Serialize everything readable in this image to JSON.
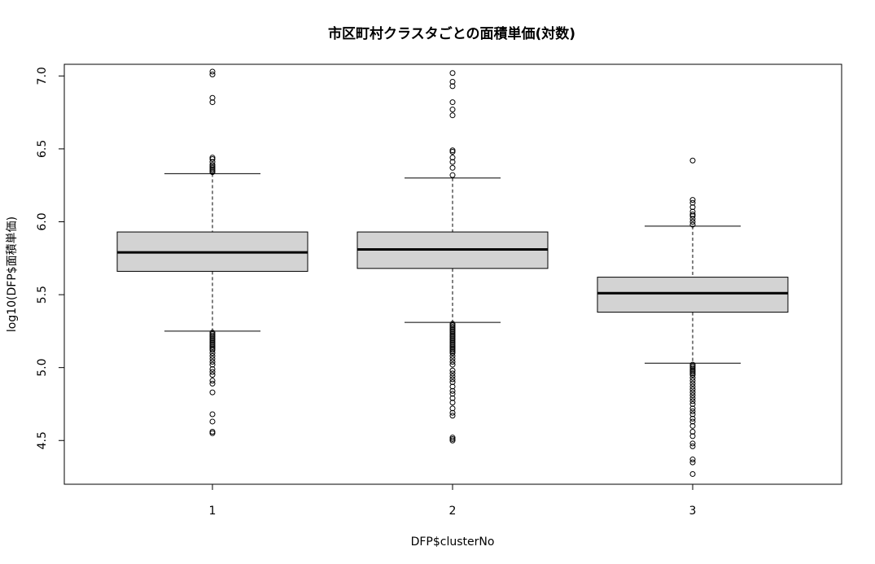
{
  "chart_data": {
    "type": "boxplot",
    "title": "市区町村クラスタごとの面積単価(対数)",
    "xlabel": "DFP$clusterNo",
    "ylabel": "log10(DFP$面積単価)",
    "categories": [
      "1",
      "2",
      "3"
    ],
    "y_ticks": [
      "4.5",
      "5.0",
      "5.5",
      "6.0",
      "6.5",
      "7.0"
    ],
    "ylim": [
      4.2,
      7.08
    ],
    "grid": false,
    "box_fill": "#d3d3d3",
    "boxes": [
      {
        "category": "1",
        "whisker_low": 5.25,
        "q1": 5.66,
        "median": 5.79,
        "q3": 5.93,
        "whisker_high": 6.33,
        "outliers": [
          7.03,
          7.01,
          6.85,
          6.82,
          6.44,
          6.43,
          6.41,
          6.39,
          6.38,
          6.37,
          6.36,
          6.35,
          6.34,
          5.24,
          5.23,
          5.22,
          5.21,
          5.2,
          5.19,
          5.18,
          5.17,
          5.16,
          5.15,
          5.14,
          5.13,
          5.12,
          5.1,
          5.08,
          5.06,
          5.04,
          5.02,
          4.99,
          4.97,
          4.95,
          4.91,
          4.89,
          4.83,
          4.68,
          4.63,
          4.56,
          4.55
        ]
      },
      {
        "category": "2",
        "whisker_low": 5.31,
        "q1": 5.68,
        "median": 5.81,
        "q3": 5.93,
        "whisker_high": 6.3,
        "outliers": [
          7.02,
          6.96,
          6.93,
          6.82,
          6.77,
          6.73,
          6.49,
          6.48,
          6.44,
          6.41,
          6.37,
          6.32,
          5.3,
          5.29,
          5.28,
          5.27,
          5.26,
          5.25,
          5.24,
          5.23,
          5.22,
          5.21,
          5.2,
          5.19,
          5.18,
          5.17,
          5.16,
          5.15,
          5.14,
          5.13,
          5.12,
          5.11,
          5.1,
          5.08,
          5.06,
          5.04,
          5.02,
          4.98,
          4.96,
          4.94,
          4.92,
          4.9,
          4.87,
          4.84,
          4.82,
          4.79,
          4.76,
          4.72,
          4.69,
          4.67,
          4.52,
          4.51,
          4.5
        ]
      },
      {
        "category": "3",
        "whisker_low": 5.03,
        "q1": 5.38,
        "median": 5.51,
        "q3": 5.62,
        "whisker_high": 5.97,
        "outliers": [
          6.42,
          6.15,
          6.13,
          6.1,
          6.07,
          6.05,
          6.04,
          6.02,
          6.0,
          5.98,
          5.02,
          5.01,
          5.0,
          4.99,
          4.98,
          4.97,
          4.96,
          4.95,
          4.93,
          4.91,
          4.89,
          4.87,
          4.85,
          4.83,
          4.81,
          4.79,
          4.77,
          4.75,
          4.72,
          4.7,
          4.68,
          4.65,
          4.63,
          4.6,
          4.56,
          4.53,
          4.48,
          4.46,
          4.37,
          4.35,
          4.27
        ]
      }
    ]
  }
}
